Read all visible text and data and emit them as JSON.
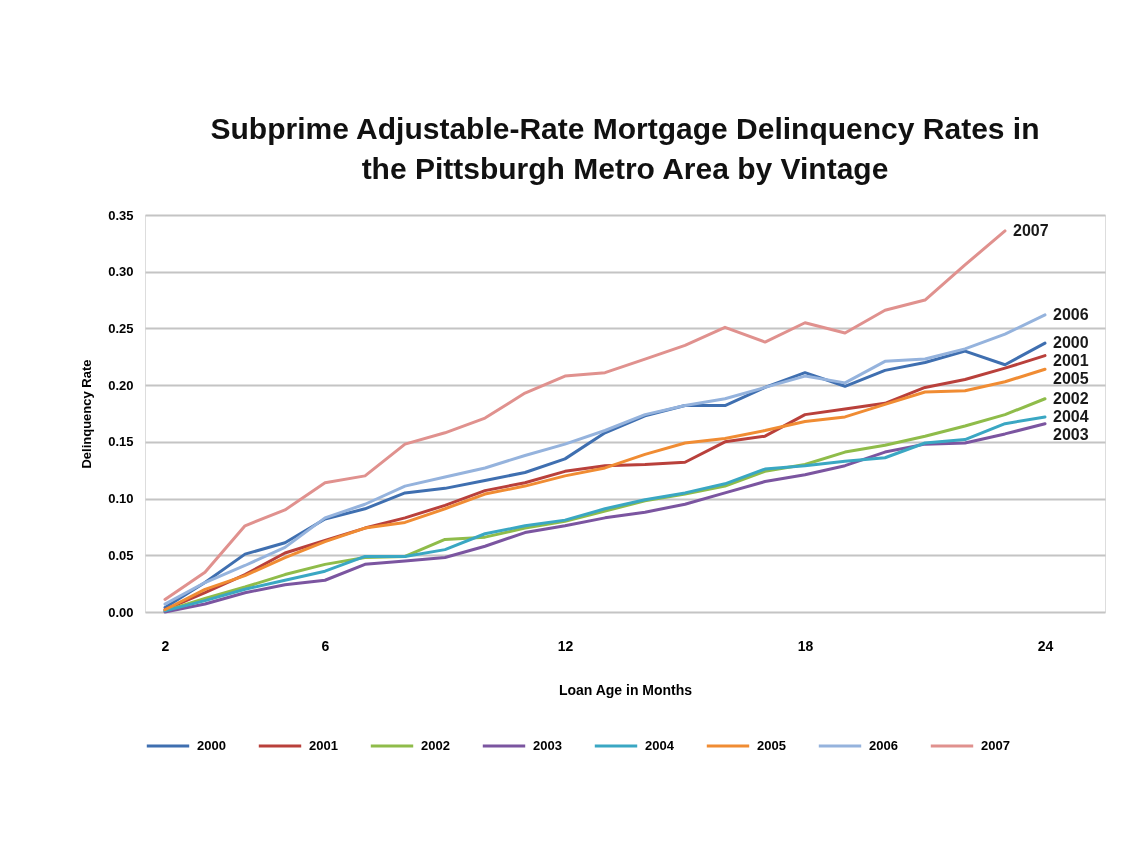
{
  "chart_data": {
    "type": "line",
    "title": "Subprime Adjustable-Rate Mortgage Delinquency Rates in the Pittsburgh Metro Area by Vintage",
    "xlabel": "Loan Age in Months",
    "ylabel": "Delinquency Rate",
    "x": [
      2,
      3,
      4,
      5,
      6,
      7,
      8,
      9,
      10,
      11,
      12,
      13,
      14,
      15,
      16,
      17,
      18,
      19,
      20,
      21,
      22,
      23,
      24
    ],
    "xlim": [
      1.5,
      25.5
    ],
    "xticks": [
      2,
      6,
      12,
      18,
      24
    ],
    "ylim": [
      0,
      0.35
    ],
    "yticks": [
      {
        "value": 0,
        "label": "0.00"
      },
      {
        "value": 0.05,
        "label": "0.05"
      },
      {
        "value": 0.1,
        "label": "0.10"
      },
      {
        "value": 0.15,
        "label": "0.15"
      },
      {
        "value": 0.2,
        "label": "0.20"
      },
      {
        "value": 0.25,
        "label": "0.25"
      },
      {
        "value": 0.3,
        "label": "0.30"
      },
      {
        "value": 0.35,
        "label": "0.35"
      }
    ],
    "grid": "y",
    "legend": "bottom",
    "line_style": "solid",
    "series": [
      {
        "name": "2000",
        "color": "#3f6fb0",
        "values": [
          0.004,
          0.026,
          0.051,
          0.061,
          0.082,
          0.091,
          0.105,
          0.109,
          0.116,
          0.123,
          0.135,
          0.158,
          0.173,
          0.182,
          0.182,
          0.198,
          0.211,
          0.199,
          0.213,
          0.22,
          0.23,
          0.218,
          0.237
        ]
      },
      {
        "name": "2001",
        "color": "#b9403b",
        "values": [
          0.002,
          0.017,
          0.033,
          0.052,
          0.063,
          0.074,
          0.083,
          0.094,
          0.107,
          0.114,
          0.124,
          0.129,
          0.13,
          0.132,
          0.15,
          0.155,
          0.174,
          0.179,
          0.184,
          0.198,
          0.205,
          0.215,
          0.226
        ]
      },
      {
        "name": "2002",
        "color": "#8fbc4a",
        "values": [
          0.001,
          0.012,
          0.022,
          0.033,
          0.042,
          0.048,
          0.049,
          0.064,
          0.066,
          0.074,
          0.08,
          0.089,
          0.098,
          0.104,
          0.111,
          0.124,
          0.13,
          0.141,
          0.147,
          0.155,
          0.164,
          0.174,
          0.188
        ]
      },
      {
        "name": "2003",
        "color": "#7b55a0",
        "values": [
          0.0,
          0.007,
          0.017,
          0.024,
          0.028,
          0.042,
          0.045,
          0.048,
          0.058,
          0.07,
          0.076,
          0.083,
          0.088,
          0.095,
          0.105,
          0.115,
          0.121,
          0.129,
          0.141,
          0.148,
          0.149,
          0.157,
          0.166
        ]
      },
      {
        "name": "2004",
        "color": "#3aa7c3",
        "values": [
          0.001,
          0.01,
          0.02,
          0.028,
          0.036,
          0.049,
          0.049,
          0.055,
          0.069,
          0.076,
          0.081,
          0.091,
          0.099,
          0.105,
          0.113,
          0.126,
          0.129,
          0.133,
          0.136,
          0.149,
          0.152,
          0.166,
          0.172
        ]
      },
      {
        "name": "2005",
        "color": "#f08c33",
        "values": [
          0.002,
          0.02,
          0.032,
          0.048,
          0.062,
          0.074,
          0.079,
          0.091,
          0.104,
          0.111,
          0.12,
          0.127,
          0.139,
          0.149,
          0.153,
          0.16,
          0.168,
          0.172,
          0.183,
          0.194,
          0.195,
          0.203,
          0.214
        ]
      },
      {
        "name": "2006",
        "color": "#95b3dd",
        "values": [
          0.007,
          0.026,
          0.041,
          0.057,
          0.083,
          0.095,
          0.111,
          0.119,
          0.127,
          0.138,
          0.148,
          0.16,
          0.174,
          0.182,
          0.188,
          0.198,
          0.208,
          0.202,
          0.221,
          0.223,
          0.232,
          0.245,
          0.262
        ]
      },
      {
        "name": "2007",
        "color": "#e0918e",
        "values": [
          0.011,
          0.035,
          0.076,
          0.09,
          0.114,
          0.12,
          0.148,
          0.158,
          0.171,
          0.193,
          0.208,
          0.211,
          0.223,
          0.235,
          0.251,
          0.238,
          0.255,
          0.246,
          0.266,
          0.275,
          0.306,
          0.336,
          null
        ]
      }
    ]
  }
}
